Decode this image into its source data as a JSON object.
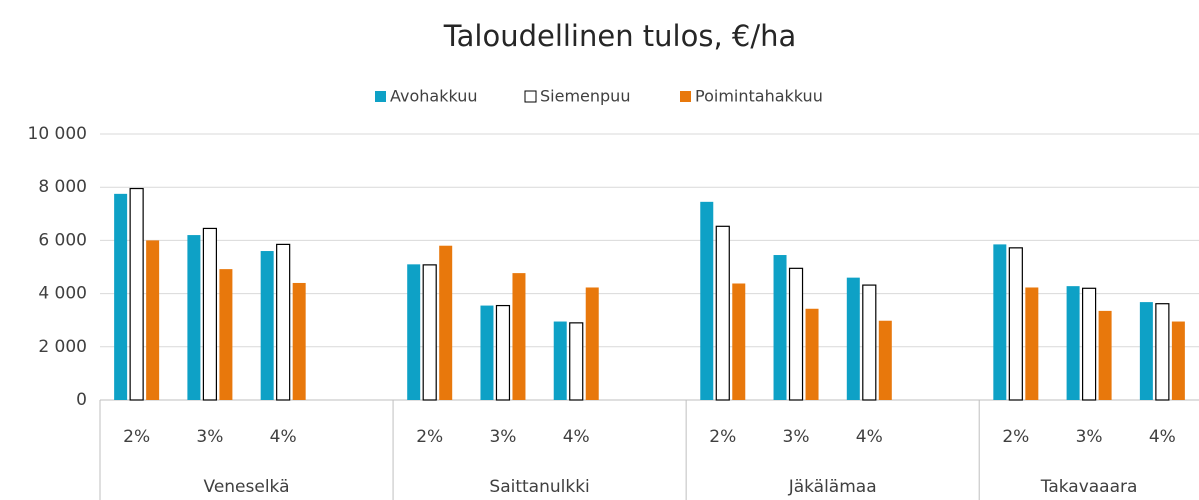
{
  "chart_data": {
    "type": "bar",
    "title": "Taloudellinen tulos, €/ha",
    "categories": [
      "2%",
      "3%",
      "4%",
      null,
      "2%",
      "3%",
      "4%",
      null,
      "2%",
      "3%",
      "4%",
      null,
      "2%",
      "3%",
      "4%"
    ],
    "groups": [
      "Veneselkä",
      "Saittanulkki",
      "Jäkälämaa",
      "Takavaaara"
    ],
    "series": [
      {
        "name": "Avohakkuu",
        "color": "#0ea1c6",
        "values": [
          7750,
          6200,
          5600,
          null,
          5100,
          3550,
          2950,
          null,
          7450,
          5450,
          4600,
          null,
          5850,
          4280,
          3680
        ]
      },
      {
        "name": "Siemenpuu",
        "color": "#ffffff",
        "values": [
          7950,
          6450,
          5850,
          null,
          5080,
          3550,
          2900,
          null,
          6530,
          4950,
          4320,
          null,
          5720,
          4200,
          3620
        ]
      },
      {
        "name": "Poimintahakkuu",
        "color": "#e8780c",
        "values": [
          6000,
          4920,
          4400,
          null,
          5800,
          4770,
          4230,
          null,
          4380,
          3430,
          2980,
          null,
          4230,
          3350,
          2950
        ]
      }
    ],
    "ylim": [
      0,
      10000
    ],
    "yticks": [
      0,
      {
        "value": 2000,
        "label": "2 000"
      },
      {
        "value": 4000,
        "label": "4 000"
      },
      {
        "value": 6000,
        "label": "6 000"
      },
      {
        "value": 8000,
        "label": "8 000"
      },
      {
        "value": 10000,
        "label": "10 000"
      }
    ],
    "grid": true,
    "legend": "top"
  }
}
